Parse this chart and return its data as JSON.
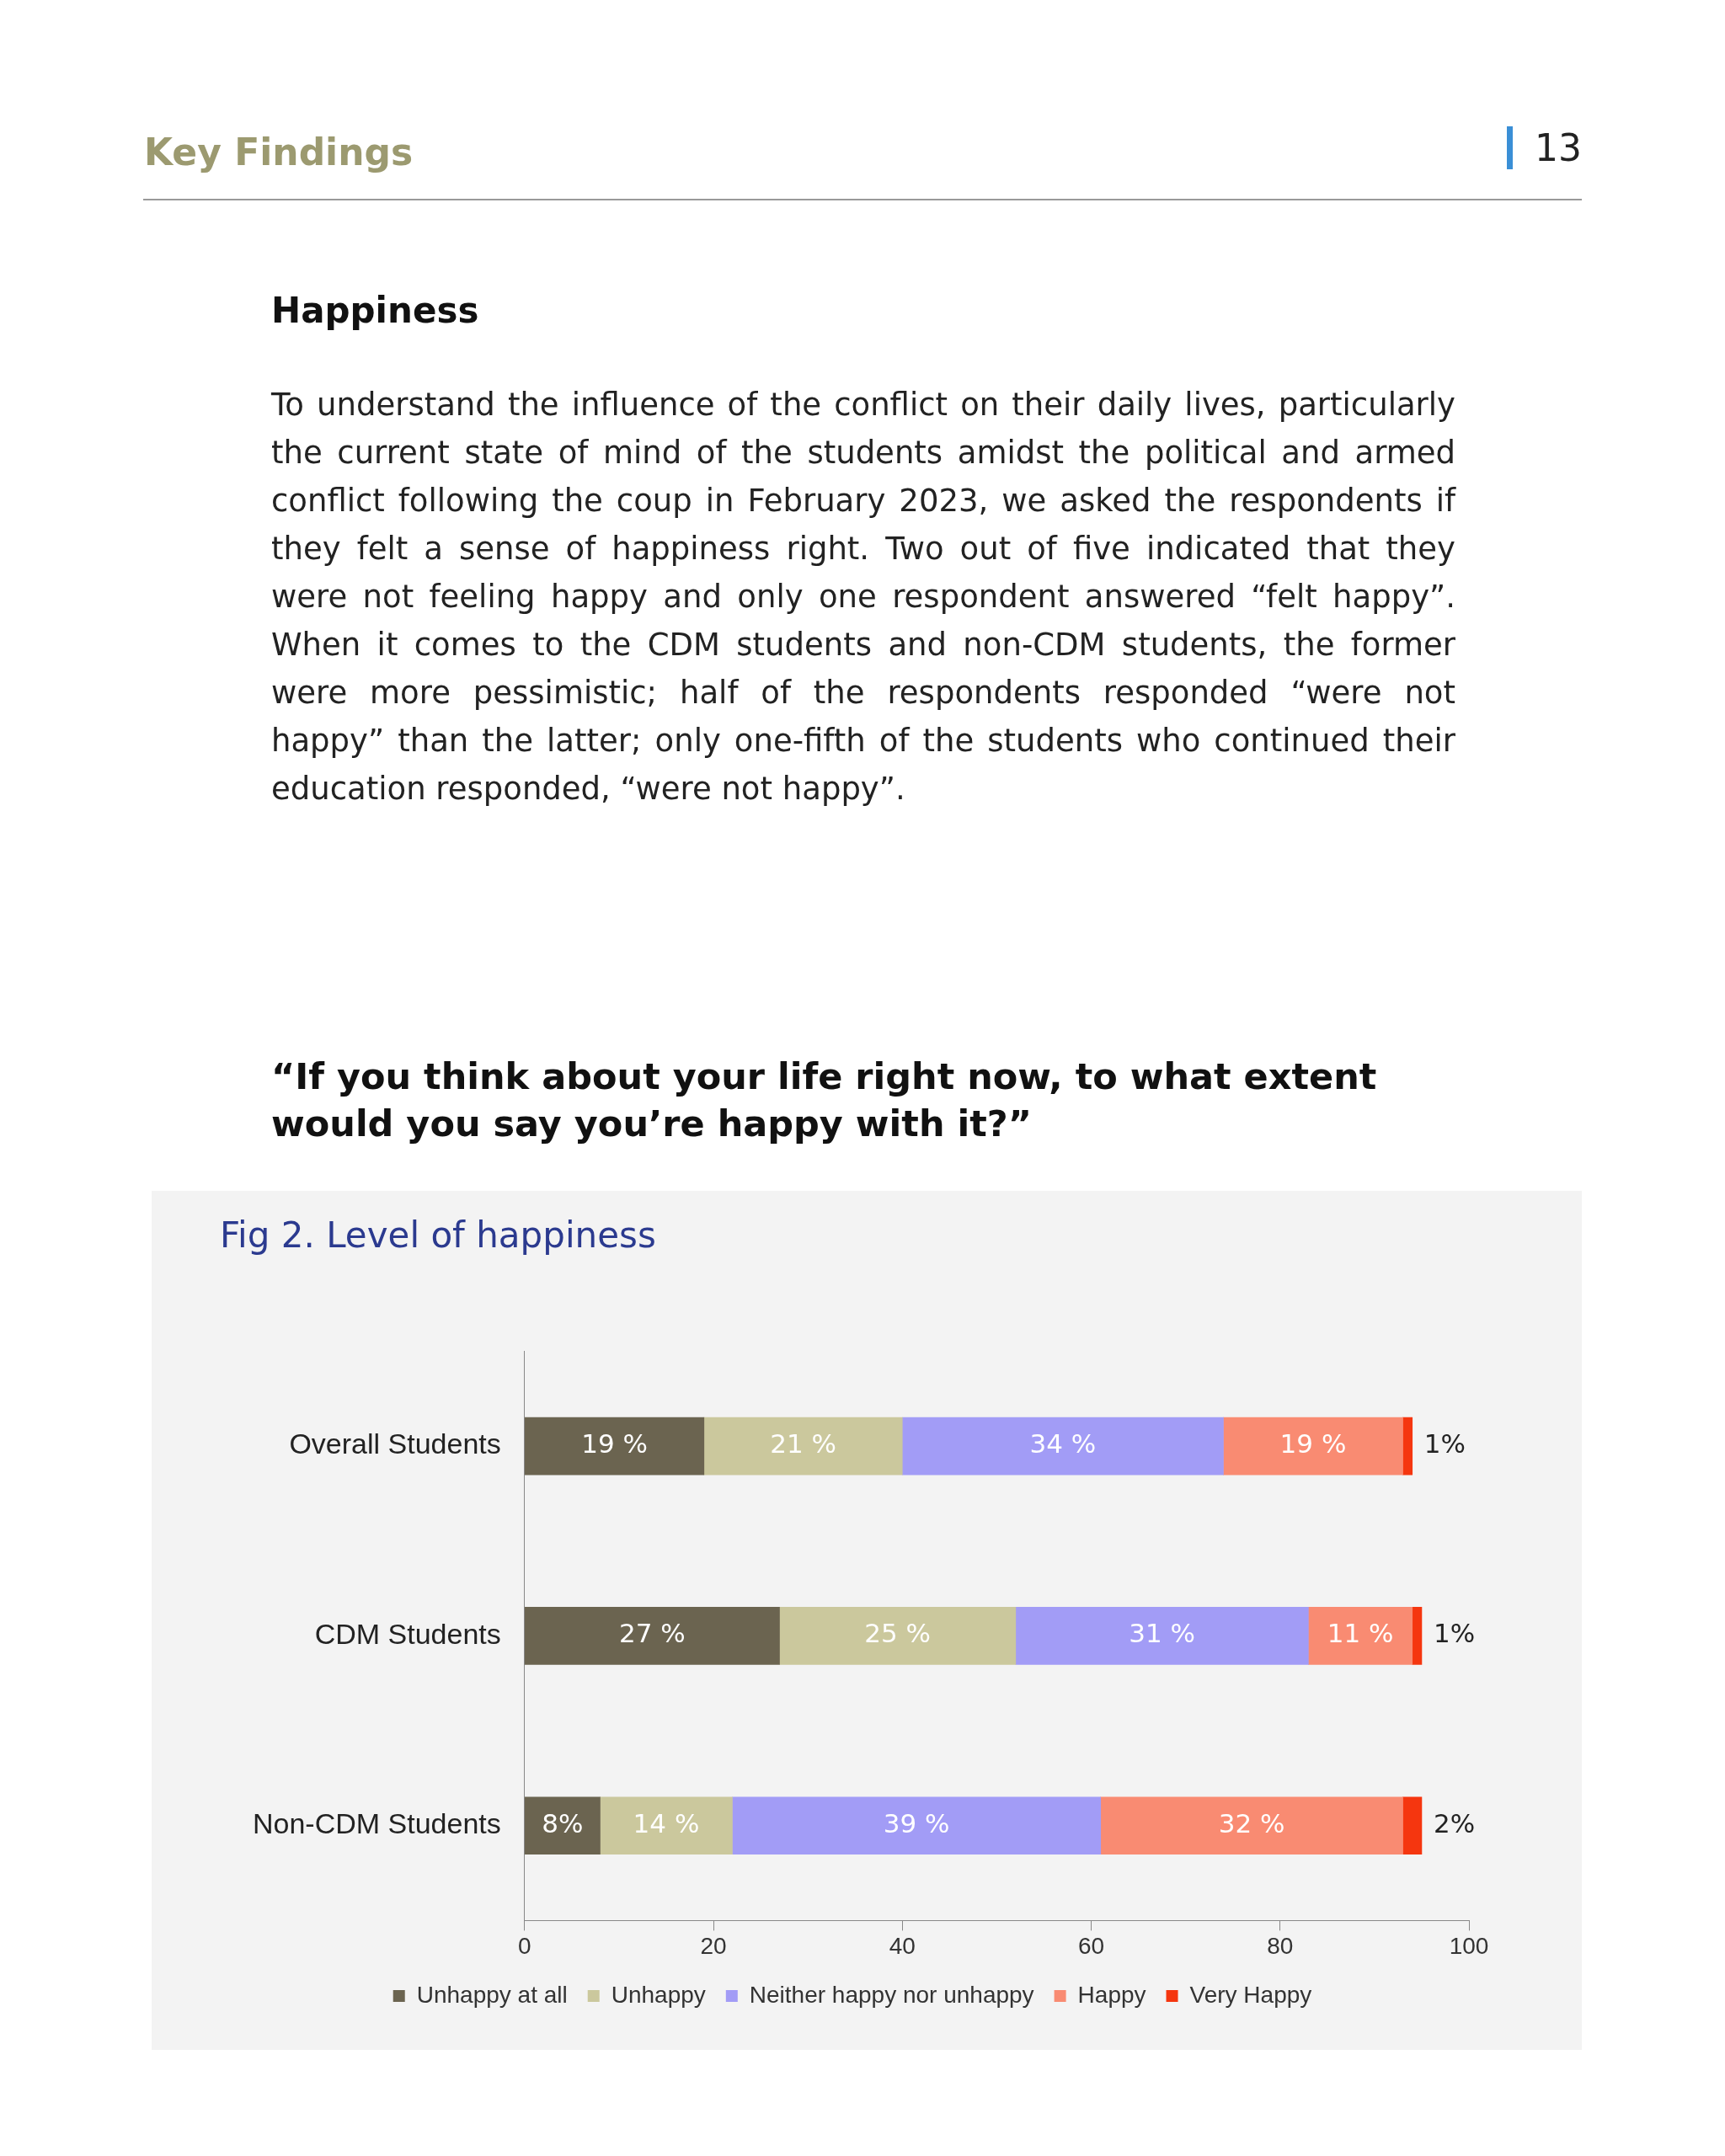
{
  "chart_data": {
    "type": "bar",
    "orientation": "horizontal",
    "stacked": true,
    "title": "Fig 2. Level of happiness",
    "subtitle": "“If you think about your life right now, to what extent would you say you’re happy with it?”",
    "annotations": [
      "Key Findings",
      "13",
      "Happiness",
      "To understand the influence of the conflict on their daily lives, particularly the current state of mind of the students amidst the political and armed conflict following the coup in February 2023, we asked the respondents if they felt a sense of happiness right. Two out of five indicated that they were not feeling happy and only one respondent answered “felt happy”. When it comes to the CDM students and non-CDM students, the former were more pessimistic; half of the respondents responded “were not happy” than the latter; only one-fifth of the students who continued their education responded, “were not happy”."
    ],
    "categories": [
      "Overall Students",
      "CDM Students",
      "Non-CDM Students"
    ],
    "series": [
      {
        "name": "Unhappy at all",
        "color": "#6b6450",
        "values": [
          19,
          27,
          8
        ],
        "value_labels": [
          "19 %",
          "27 %",
          "8%"
        ]
      },
      {
        "name": "Unhappy",
        "color": "#cbc89d",
        "values": [
          21,
          25,
          14
        ],
        "value_labels": [
          "21 %",
          "25 %",
          "14 %"
        ]
      },
      {
        "name": "Neither happy nor unhappy",
        "color": "#a29cf6",
        "values": [
          34,
          31,
          39
        ],
        "value_labels": [
          "34 %",
          "31 %",
          "39 %"
        ]
      },
      {
        "name": "Happy",
        "color": "#f98b72",
        "values": [
          19,
          11,
          32
        ],
        "value_labels": [
          "19 %",
          "11 %",
          "32 %"
        ]
      },
      {
        "name": "Very Happy",
        "color": "#f5360f",
        "values": [
          1,
          1,
          2
        ],
        "value_labels": [
          "1%",
          "1%",
          "2%"
        ]
      }
    ],
    "xlim": [
      0,
      100
    ],
    "xticks": [
      0,
      20,
      40,
      60,
      80,
      100
    ],
    "legend": "bottom"
  }
}
